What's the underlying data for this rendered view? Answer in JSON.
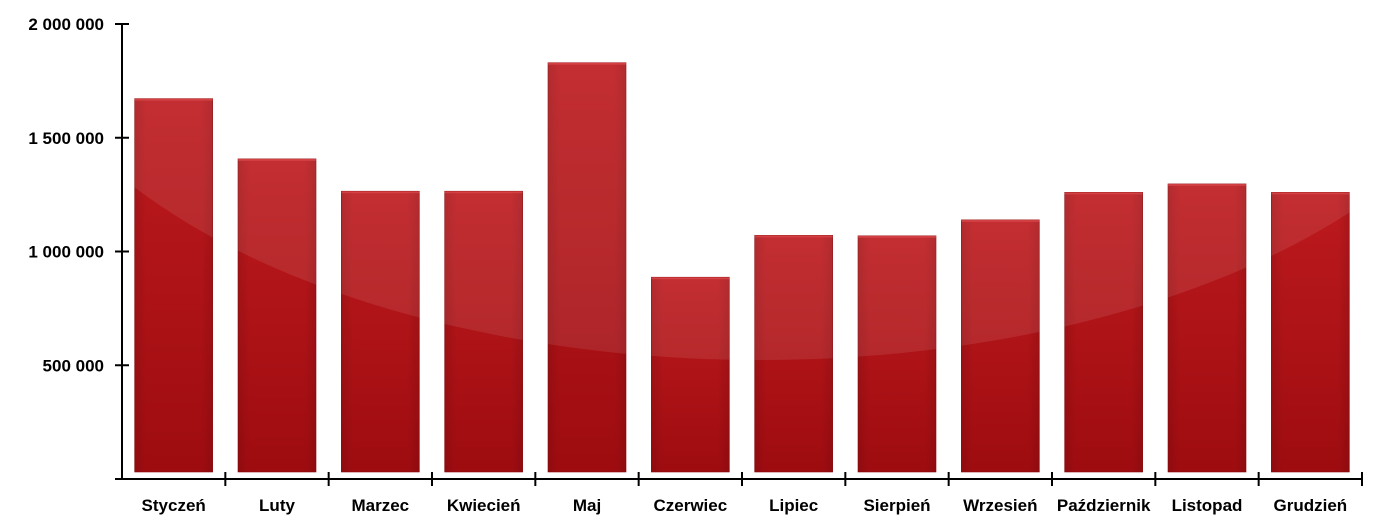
{
  "chart_data": {
    "type": "bar",
    "title": "",
    "xlabel": "",
    "ylabel": "",
    "categories": [
      "Styczeń",
      "Luty",
      "Marzec",
      "Kwiecień",
      "Maj",
      "Czerwiec",
      "Lipiec",
      "Sierpień",
      "Wrzesień",
      "Październik",
      "Listopad",
      "Grudzień"
    ],
    "values": [
      1672000,
      1407000,
      1265000,
      1265000,
      1830000,
      887000,
      1071000,
      1069000,
      1139000,
      1260000,
      1297000,
      1260000
    ],
    "ylim": [
      0,
      2000000
    ],
    "yticks": [
      500000,
      1000000,
      1500000,
      2000000
    ],
    "ytick_labels": [
      "500 000",
      "1 000 000",
      "1 500 000",
      "2 000 000"
    ],
    "grid": false,
    "legend": "none",
    "colors": {
      "bar_top": "#b8181c",
      "bar_bottom": "#a00d10",
      "bar_edge": "#8a0a0d",
      "axis": "#000000"
    }
  }
}
